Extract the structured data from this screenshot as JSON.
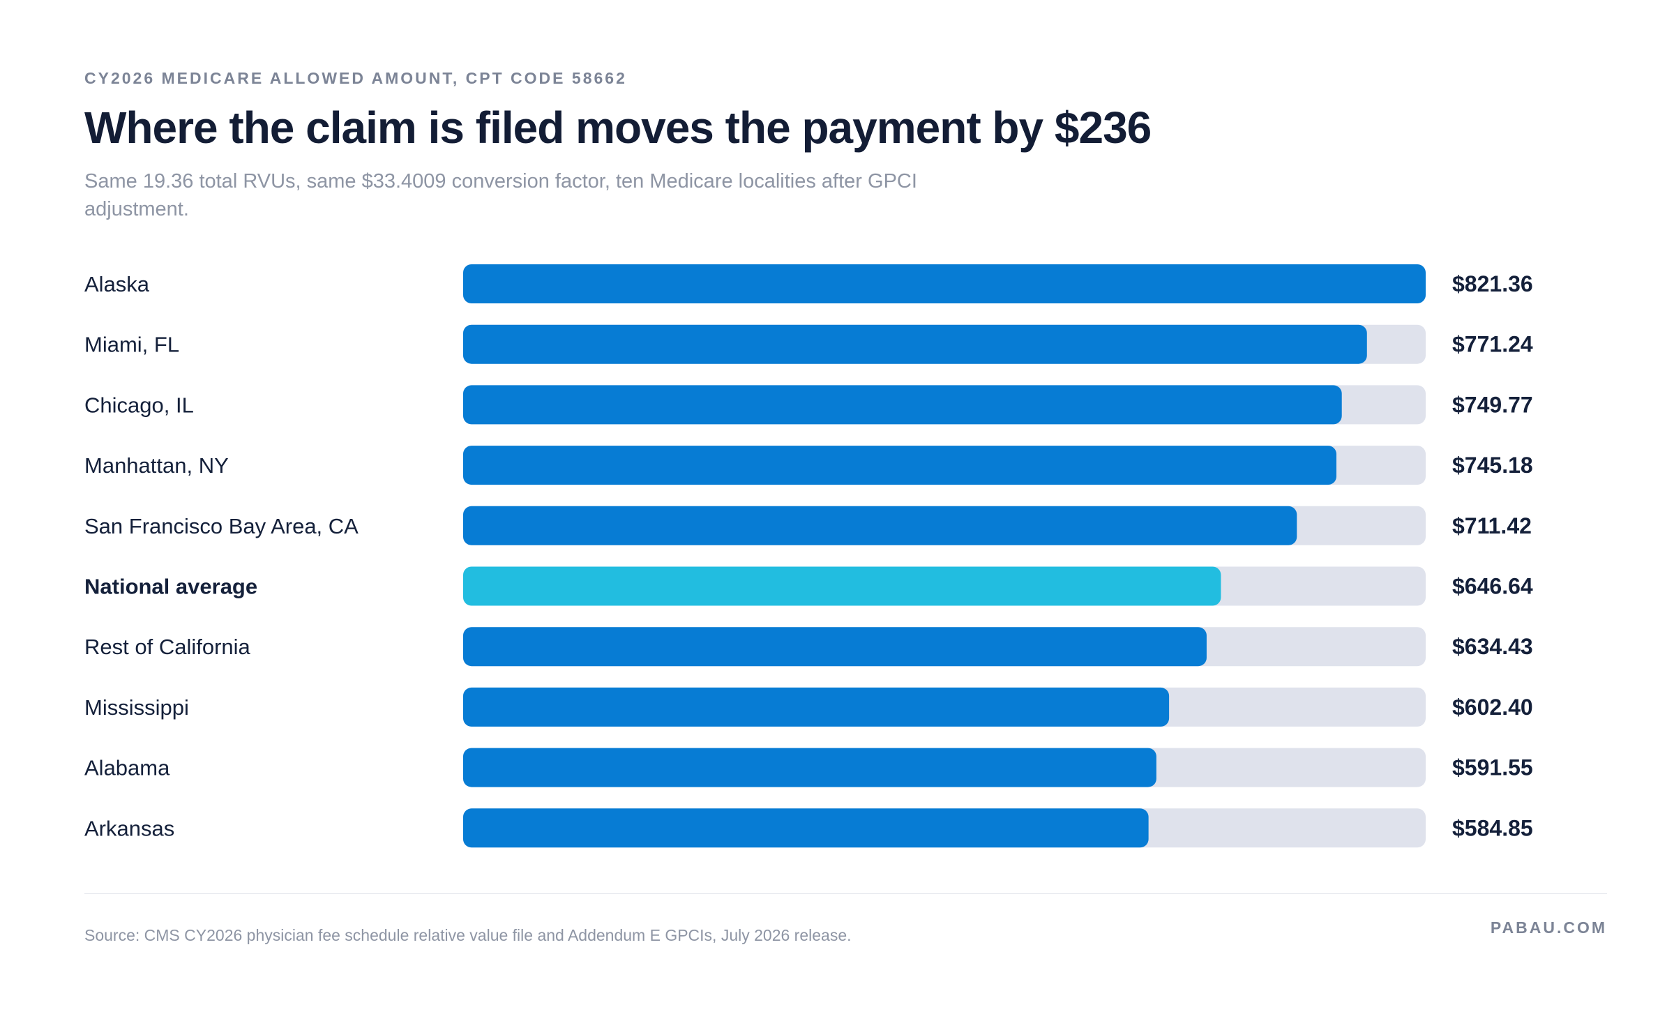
{
  "header": {
    "eyebrow": "CY2026 MEDICARE ALLOWED AMOUNT, CPT CODE 58662",
    "title": "Where the claim is filed moves the payment by $236",
    "subtitle": "Same 19.36 total RVUs, same $33.4009 conversion factor, ten Medicare localities after GPCI adjustment."
  },
  "footer": {
    "source": "Source: CMS CY2026 physician fee schedule relative value file and Addendum E GPCIs, July 2026 release.",
    "brand": "PABAU.COM"
  },
  "colors": {
    "bar": "#077cd4",
    "highlight_bar": "#22bde0",
    "track": "#dfe2ec",
    "label": "#14203a",
    "value": "#14203a"
  },
  "chart_data": {
    "type": "bar",
    "orientation": "horizontal",
    "categories": [
      "Alaska",
      "Miami, FL",
      "Chicago, IL",
      "Manhattan, NY",
      "San Francisco Bay Area, CA",
      "National average",
      "Rest of California",
      "Mississippi",
      "Alabama",
      "Arkansas"
    ],
    "values": [
      821.36,
      771.24,
      749.77,
      745.18,
      711.42,
      646.64,
      634.43,
      602.4,
      591.55,
      584.85
    ],
    "value_labels": [
      "$821.36",
      "$771.24",
      "$749.77",
      "$745.18",
      "$711.42",
      "$646.64",
      "$634.43",
      "$602.40",
      "$591.55",
      "$584.85"
    ],
    "highlight": "National average",
    "xlim": [
      0,
      821.36
    ],
    "grid": false,
    "legend": "none"
  }
}
